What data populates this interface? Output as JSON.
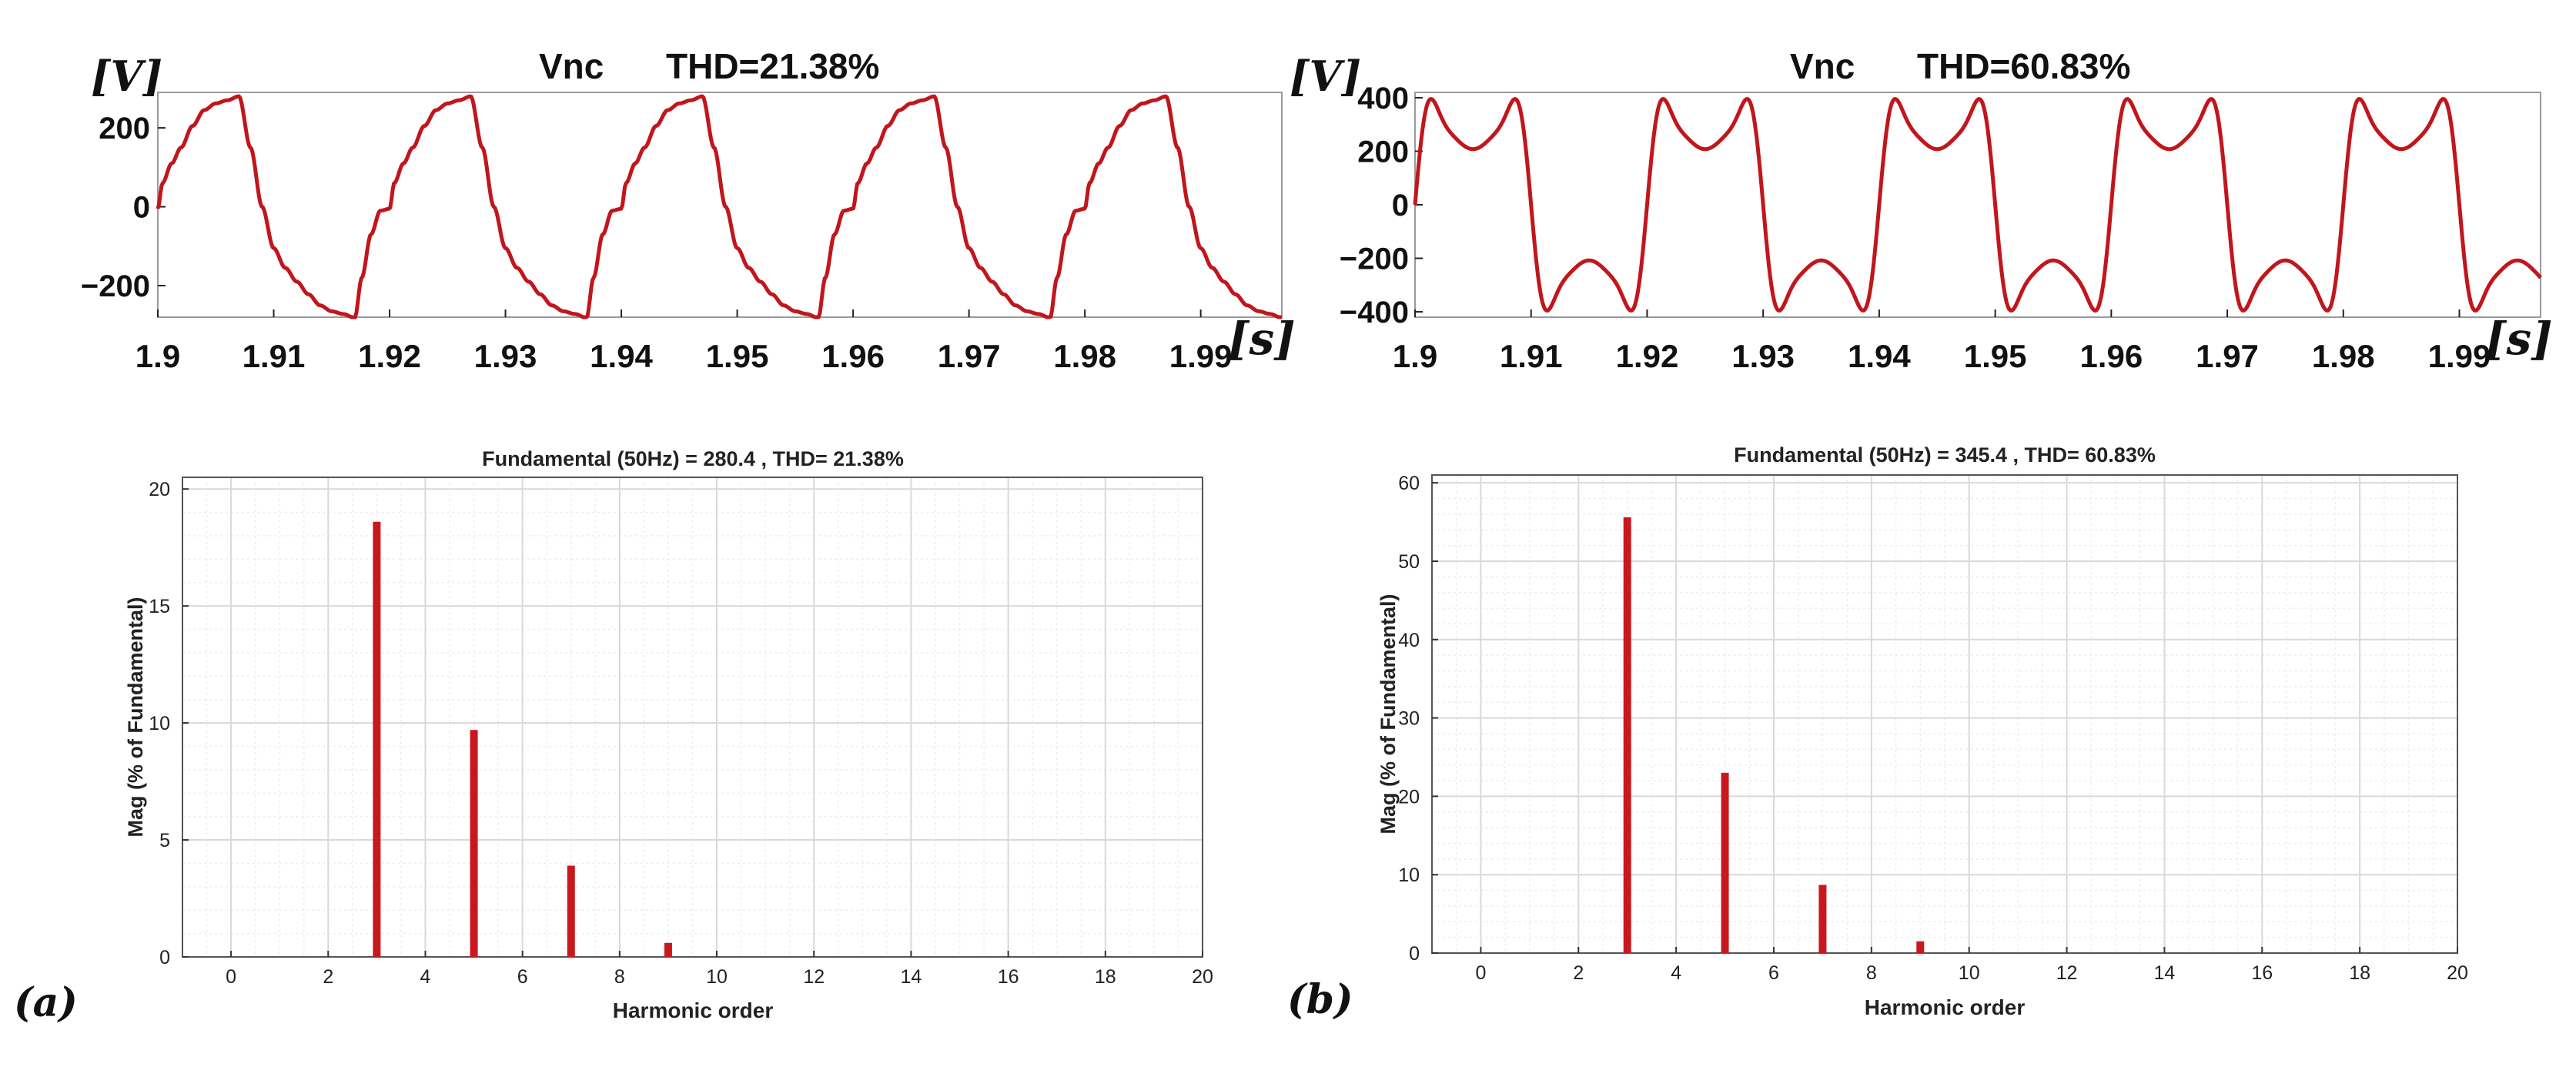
{
  "style": {
    "wave_color": "#c0161c",
    "bar_color": "#c8181e",
    "axis_color": "#222222",
    "grid_color": "#d9d9d9",
    "grid_minor_color": "#eeeeee"
  },
  "chart_data": [
    {
      "type": "line",
      "title_left": "Vnc",
      "title_right": "THD=21.38%",
      "ylabel": "[V]",
      "xlabel": "[s]",
      "xlim": [
        1.9,
        1.997
      ],
      "ylim": [
        -280,
        290
      ],
      "xticks": [
        "1.9",
        "1.91",
        "1.92",
        "1.93",
        "1.94",
        "1.95",
        "1.96",
        "1.97",
        "1.98",
        "1.99"
      ],
      "yticks": [
        "200",
        "0",
        "−200"
      ],
      "ytick_values": [
        200,
        0,
        -200
      ],
      "series": [
        {
          "name": "Vnc",
          "period_s": 0.02,
          "cycle_phase": [
            0,
            0.02,
            0.06,
            0.1,
            0.15,
            0.2,
            0.25,
            0.3,
            0.35,
            0.4,
            0.45,
            0.5,
            0.55,
            0.6,
            0.65,
            0.7,
            0.75,
            0.8,
            0.85,
            0.88,
            0.92,
            0.96,
            1.0
          ],
          "cycle_values": [
            -5,
            60,
            110,
            150,
            205,
            245,
            262,
            270,
            280,
            150,
            0,
            -105,
            -155,
            -190,
            -222,
            -250,
            -265,
            -272,
            -282,
            -180,
            -70,
            -10,
            -5
          ]
        }
      ]
    },
    {
      "type": "line",
      "title_left": "Vnc",
      "title_right": "THD=60.83%",
      "ylabel": "[V]",
      "xlabel": "[s]",
      "xlim": [
        1.9,
        1.997
      ],
      "ylim": [
        -420,
        420
      ],
      "xticks": [
        "1.9",
        "1.91",
        "1.92",
        "1.93",
        "1.94",
        "1.95",
        "1.96",
        "1.97",
        "1.98",
        "1.99"
      ],
      "yticks": [
        "400",
        "200",
        "0",
        "−200",
        "−400"
      ],
      "ytick_values": [
        400,
        200,
        0,
        -200,
        -400
      ],
      "series": [
        {
          "name": "Vnc",
          "fundamental": 345.4,
          "harmonics": [
            {
              "order": 3,
              "percent": 55.6,
              "phase": 0
            },
            {
              "order": 5,
              "percent": 23.0,
              "phase": 0
            },
            {
              "order": 7,
              "percent": 8.7,
              "phase": 0
            },
            {
              "order": 9,
              "percent": 1.5,
              "phase": 0
            }
          ]
        }
      ]
    },
    {
      "type": "bar",
      "title": "Fundamental (50Hz) = 280.4 , THD= 21.38%",
      "xlabel": "Harmonic order",
      "ylabel": "Mag (% of Fundamental)",
      "xlim": [
        -1,
        20
      ],
      "ylim": [
        0,
        20.5
      ],
      "xticks": [
        "0",
        "2",
        "4",
        "6",
        "8",
        "10",
        "12",
        "14",
        "16",
        "18",
        "20"
      ],
      "xtick_values": [
        0,
        2,
        4,
        6,
        8,
        10,
        12,
        14,
        16,
        18,
        20
      ],
      "yticks": [
        "0",
        "5",
        "10",
        "15",
        "20"
      ],
      "ytick_values": [
        0,
        5,
        10,
        15,
        20
      ],
      "categories": [
        3,
        5,
        7,
        9
      ],
      "values": [
        18.6,
        9.7,
        3.9,
        0.6
      ],
      "panel_label": "(a)"
    },
    {
      "type": "bar",
      "title": "Fundamental (50Hz) = 345.4 , THD= 60.83%",
      "xlabel": "Harmonic order",
      "ylabel": "Mag (% of Fundamental)",
      "xlim": [
        -1,
        20
      ],
      "ylim": [
        0,
        61
      ],
      "xticks": [
        "0",
        "2",
        "4",
        "6",
        "8",
        "10",
        "12",
        "14",
        "16",
        "18",
        "20"
      ],
      "xtick_values": [
        0,
        2,
        4,
        6,
        8,
        10,
        12,
        14,
        16,
        18,
        20
      ],
      "yticks": [
        "0",
        "10",
        "20",
        "30",
        "40",
        "50",
        "60"
      ],
      "ytick_values": [
        0,
        10,
        20,
        30,
        40,
        50,
        60
      ],
      "categories": [
        3,
        5,
        7,
        9
      ],
      "values": [
        55.6,
        23.0,
        8.7,
        1.5
      ],
      "panel_label": "(b)"
    }
  ]
}
